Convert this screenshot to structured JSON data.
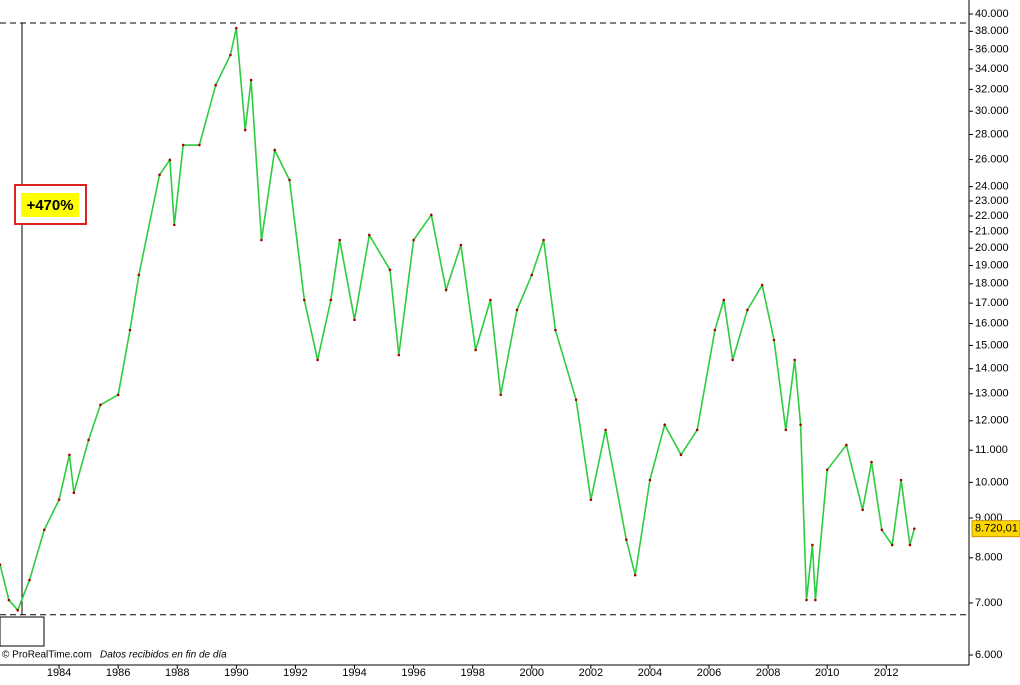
{
  "chart_data": {
    "type": "line",
    "x": [
      1982.0,
      1982.3,
      1982.6,
      1983.0,
      1983.5,
      1984.0,
      1984.35,
      1984.5,
      1985.0,
      1985.4,
      1986.0,
      1986.4,
      1986.7,
      1987.4,
      1987.75,
      1987.9,
      1988.2,
      1988.75,
      1989.3,
      1989.8,
      1990.0,
      1990.3,
      1990.5,
      1990.85,
      1991.3,
      1991.8,
      1992.3,
      1992.75,
      1993.2,
      1993.5,
      1994.0,
      1994.5,
      1995.2,
      1995.5,
      1996.0,
      1996.6,
      1997.1,
      1997.6,
      1998.1,
      1998.6,
      1998.95,
      1999.5,
      2000.0,
      2000.4,
      2000.8,
      2001.5,
      2002.0,
      2002.5,
      2003.2,
      2003.5,
      2004.0,
      2004.5,
      2005.05,
      2005.6,
      2006.2,
      2006.5,
      2006.8,
      2007.3,
      2007.8,
      2008.2,
      2008.6,
      2008.9,
      2009.1,
      2009.3,
      2009.5,
      2009.6,
      2010.0,
      2010.65,
      2011.2,
      2011.5,
      2011.85,
      2012.2,
      2012.5,
      2012.8,
      2012.95
    ],
    "values": [
      7840,
      7060,
      6850,
      7490,
      8690,
      9500,
      10850,
      9700,
      11340,
      12580,
      12960,
      15700,
      18480,
      24850,
      25970,
      21430,
      27140,
      27140,
      32410,
      35430,
      38370,
      28380,
      32900,
      20490,
      26740,
      24470,
      17160,
      14370,
      17160,
      20490,
      16180,
      20790,
      18760,
      14580,
      20490,
      22070,
      17680,
      20190,
      14800,
      17160,
      12960,
      16660,
      18480,
      20490,
      15700,
      12770,
      9500,
      11680,
      8440,
      7600,
      10070,
      11860,
      10850,
      11680,
      15700,
      17160,
      14370,
      16660,
      17930,
      15240,
      11680,
      14370,
      11860,
      7060,
      8310,
      7060,
      10380,
      11170,
      9220,
      10620,
      8690,
      8310,
      10070,
      8310,
      8720
    ],
    "color": "#2ecc40",
    "xlim": [
      1982,
      2014.8
    ],
    "xticks": [
      1984,
      1986,
      1988,
      1990,
      1992,
      1994,
      1996,
      1998,
      2000,
      2002,
      2004,
      2006,
      2008,
      2010,
      2012
    ],
    "ylim": [
      6000,
      40000
    ],
    "log_scale": true,
    "yticks": [
      {
        "value": 6000,
        "label": "6.000"
      },
      {
        "value": 7000,
        "label": "7.000"
      },
      {
        "value": 8000,
        "label": "8.000"
      },
      {
        "value": 9000,
        "label": "9.000"
      },
      {
        "value": 10000,
        "label": "10.000"
      },
      {
        "value": 11000,
        "label": "11.000"
      },
      {
        "value": 12000,
        "label": "12.000"
      },
      {
        "value": 13000,
        "label": "13.000"
      },
      {
        "value": 14000,
        "label": "14.000"
      },
      {
        "value": 15000,
        "label": "15.000"
      },
      {
        "value": 16000,
        "label": "16.000"
      },
      {
        "value": 17000,
        "label": "17.000"
      },
      {
        "value": 18000,
        "label": "18.000"
      },
      {
        "value": 19000,
        "label": "19.000"
      },
      {
        "value": 20000,
        "label": "20.000"
      },
      {
        "value": 21000,
        "label": "21.000"
      },
      {
        "value": 22000,
        "label": "22.000"
      },
      {
        "value": 23000,
        "label": "23.000"
      },
      {
        "value": 24000,
        "label": "24.000"
      },
      {
        "value": 26000,
        "label": "26.000"
      },
      {
        "value": 28000,
        "label": "28.000"
      },
      {
        "value": 30000,
        "label": "30.000"
      },
      {
        "value": 32000,
        "label": "32.000"
      },
      {
        "value": 34000,
        "label": "34.000"
      },
      {
        "value": 36000,
        "label": "36.000"
      },
      {
        "value": 38000,
        "label": "38.000"
      },
      {
        "value": 40000,
        "label": "40.000"
      }
    ],
    "reference_lines": [
      38950,
      6760
    ],
    "last_price": {
      "value": 8720.01,
      "label": "8.720,01"
    },
    "annotation": "+470%",
    "footer": {
      "source": "© ProRealTime.com",
      "note": "Datos recibidos en fin de día"
    }
  }
}
